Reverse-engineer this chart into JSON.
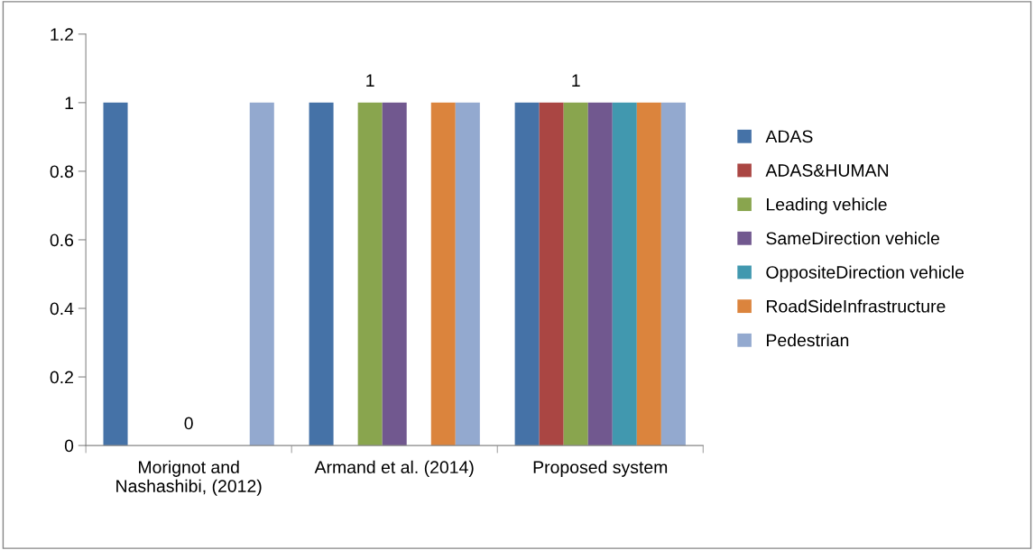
{
  "chart_data": {
    "type": "bar",
    "categories": [
      "Morignot and\nNashashibi, (2012)",
      "Armand et al. (2014)",
      "Proposed system"
    ],
    "series": [
      {
        "name": "ADAS",
        "color": "#4572a7",
        "values": [
          1,
          1,
          1
        ]
      },
      {
        "name": "ADAS&HUMAN",
        "color": "#aa4643",
        "values": [
          0,
          0,
          1
        ]
      },
      {
        "name": "Leading vehicle",
        "color": "#89a54e",
        "values": [
          0,
          1,
          1
        ],
        "value_labels": [
          null,
          "1",
          "1"
        ]
      },
      {
        "name": "SameDirection vehicle",
        "color": "#71588f",
        "values": [
          0,
          1,
          1
        ]
      },
      {
        "name": "OppositeDirection vehicle",
        "color": "#4198af",
        "values": [
          0,
          0,
          1
        ]
      },
      {
        "name": "RoadSideInfrastructure",
        "color": "#db843d",
        "values": [
          0,
          1,
          1
        ]
      },
      {
        "name": "Pedestrian",
        "color": "#93a9cf",
        "values": [
          1,
          1,
          1
        ]
      }
    ],
    "ylim": [
      0,
      1.2
    ],
    "yticks": [
      0,
      0.2,
      0.4,
      0.6,
      0.8,
      1,
      1.2
    ],
    "annotations": [
      {
        "text": "0",
        "x": "Morignot and\nNashashibi, (2012)",
        "y": 0
      }
    ],
    "grid": false,
    "legend": "right"
  }
}
